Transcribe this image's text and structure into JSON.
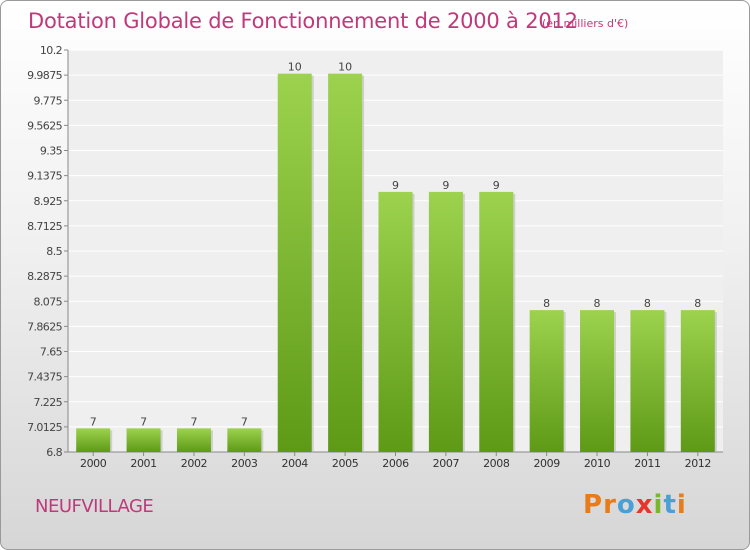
{
  "header": {
    "title": "Dotation Globale de Fonctionnement de 2000 à 2012",
    "unit": "(en milliers d'€)"
  },
  "footer": {
    "place": "NEUFVILLAGE",
    "logo": "Proxiti"
  },
  "colors": {
    "accent": "#c0397a",
    "bar_light": "#9cd24e",
    "bar_dark": "#5e9a16",
    "logo_letters": [
      "#e87b1a",
      "#e87b1a",
      "#4aa0d6",
      "#e8352b",
      "#78b82a",
      "#4aa0d6",
      "#e87b1a"
    ]
  },
  "chart_data": {
    "type": "bar",
    "categories": [
      "2000",
      "2001",
      "2002",
      "2003",
      "2004",
      "2005",
      "2006",
      "2007",
      "2008",
      "2009",
      "2010",
      "2011",
      "2012"
    ],
    "values": [
      7,
      7,
      7,
      7,
      10,
      10,
      9,
      9,
      9,
      8,
      8,
      8,
      8
    ],
    "data_labels": [
      "7",
      "7",
      "7",
      "7",
      "10",
      "10",
      "9",
      "9",
      "9",
      "8",
      "8",
      "8",
      "8"
    ],
    "yticks": [
      "6.8",
      "7.0125",
      "7.225",
      "7.4375",
      "7.65",
      "7.8625",
      "8.075",
      "8.2875",
      "8.5",
      "8.7125",
      "8.925",
      "9.1375",
      "9.35",
      "9.5625",
      "9.775",
      "9.9875",
      "10.2"
    ],
    "ylim": [
      6.8,
      10.2
    ],
    "grid": true,
    "title": "Dotation Globale de Fonctionnement de 2000 à 2012",
    "unit": "(en milliers d'€)"
  }
}
